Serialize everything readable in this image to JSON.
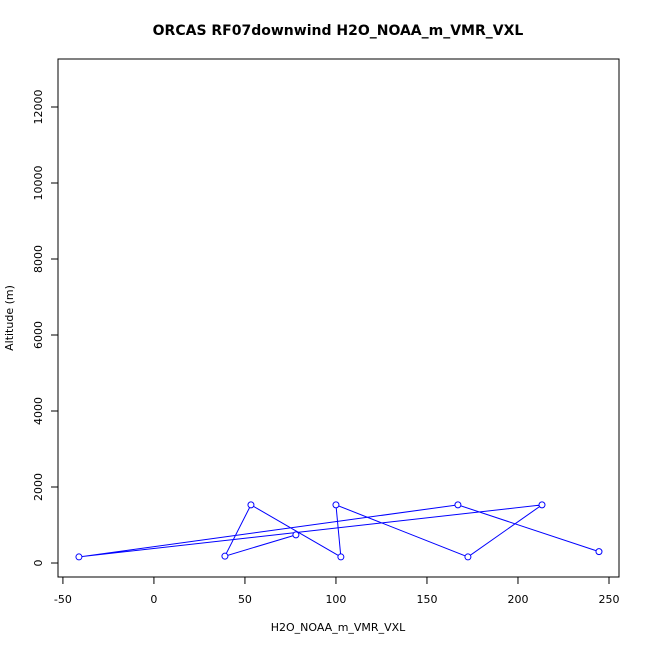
{
  "chart_data": {
    "type": "line",
    "title": "ORCAS RF07downwind H2O_NOAA_m_VMR_VXL",
    "x_label": "H2O_NOAA_m_VMR_VXL",
    "y_label": "Altitude (m)",
    "series": [
      {
        "color": "#0000ff",
        "marker": "circle",
        "x": [
          78,
          39,
          53.3,
          102.7,
          100,
          172.5,
          213.2,
          -41.2,
          167,
          244.5
        ],
        "values": [
          740,
          180,
          1530,
          160,
          1530,
          160,
          1530,
          160,
          1530,
          300
        ]
      }
    ],
    "xlim": [
      -52.7,
      255.5
    ],
    "xticks": [
      -50,
      0,
      50,
      100,
      150,
      200,
      250
    ],
    "ylim": [
      -368,
      13263
    ],
    "yticks": [
      0,
      2000,
      4000,
      6000,
      8000,
      10000,
      12000
    ],
    "grid": false
  }
}
